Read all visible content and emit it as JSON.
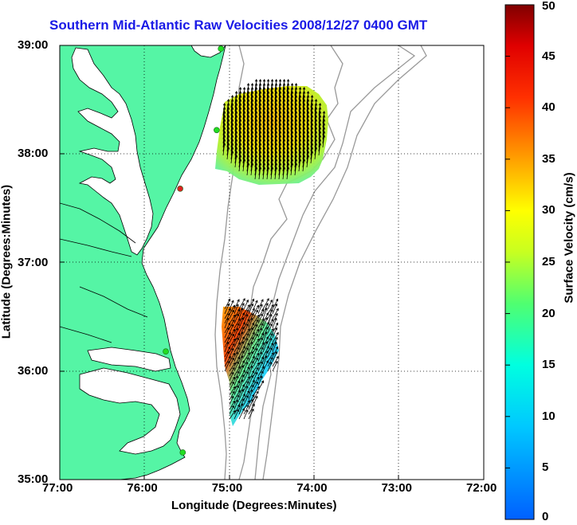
{
  "title": "Southern Mid-Atlantic Raw Velocities 2008/12/27 0400 GMT",
  "map": {
    "xlabel": "Longitude (Degrees:Minutes)",
    "ylabel": "Latitude (Degrees:Minutes)",
    "x_ticks": [
      "77:00",
      "76:00",
      "75:00",
      "74:00",
      "73:00",
      "72:00"
    ],
    "y_ticks": [
      "39:00",
      "38:00",
      "37:00",
      "36:00",
      "35:00"
    ],
    "lon_range": [
      -77,
      -72
    ],
    "lat_range": [
      35,
      39
    ],
    "land_color": "#55f5a5",
    "water_color": "#ffffff",
    "grid": "dotted",
    "stations": [
      {
        "lon": -75.1,
        "lat": 38.97,
        "color": "#22dd22"
      },
      {
        "lon": -75.15,
        "lat": 38.22,
        "color": "#22dd22"
      },
      {
        "lon": -75.58,
        "lat": 37.68,
        "color": "#dd2222"
      },
      {
        "lon": -75.75,
        "lat": 36.18,
        "color": "#22dd22"
      },
      {
        "lon": -75.55,
        "lat": 35.25,
        "color": "#22dd22"
      }
    ]
  },
  "colorbar": {
    "label": "Surface Velocity (cm/s)",
    "ticks": [
      "50",
      "45",
      "40",
      "35",
      "30",
      "25",
      "20",
      "15",
      "10",
      "5",
      "0"
    ],
    "range": [
      0,
      50
    ],
    "colormap": "jet"
  }
}
